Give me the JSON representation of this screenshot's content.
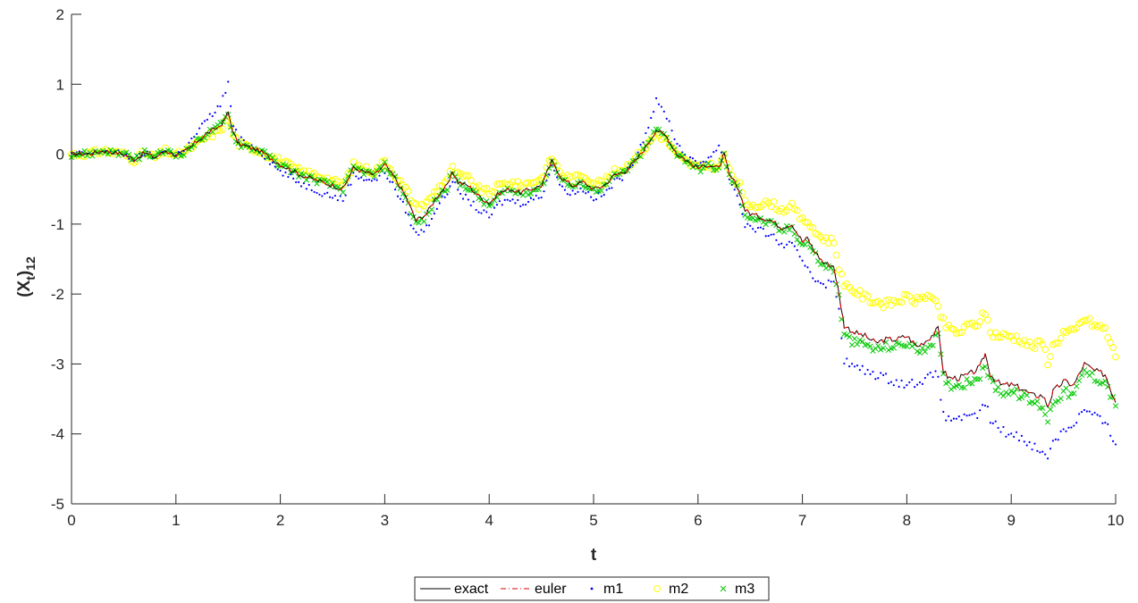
{
  "chart_data": {
    "type": "line",
    "title": "",
    "xlabel": "t",
    "ylabel": "(X_t)_12",
    "ylabel_main": "(X",
    "ylabel_sub1": "t",
    "ylabel_mid": ")",
    "ylabel_sub2": "12",
    "xlim": [
      0,
      10
    ],
    "ylim": [
      -5,
      2
    ],
    "xticks": [
      0,
      1,
      2,
      3,
      4,
      5,
      6,
      7,
      8,
      9,
      10
    ],
    "yticks": [
      2,
      1,
      0,
      -1,
      -2,
      -3,
      -4,
      -5
    ],
    "xtick_labels": [
      "0",
      "1",
      "2",
      "3",
      "4",
      "5",
      "6",
      "7",
      "8",
      "9",
      "10"
    ],
    "ytick_labels": [
      "2",
      "1",
      "0",
      "-1",
      "-2",
      "-3",
      "-4",
      "-5"
    ],
    "grid": false,
    "legend_placement": "bottom-center",
    "x": [
      0,
      0.2,
      0.3,
      0.5,
      0.6,
      0.7,
      0.8,
      0.9,
      1.0,
      1.1,
      1.2,
      1.3,
      1.4,
      1.45,
      1.5,
      1.55,
      1.6,
      1.8,
      2.0,
      2.2,
      2.4,
      2.6,
      2.7,
      2.9,
      3.0,
      3.1,
      3.2,
      3.3,
      3.4,
      3.5,
      3.6,
      3.65,
      3.7,
      3.8,
      3.9,
      4.0,
      4.1,
      4.2,
      4.3,
      4.5,
      4.6,
      4.7,
      4.8,
      4.9,
      5.0,
      5.1,
      5.2,
      5.3,
      5.4,
      5.5,
      5.6,
      5.7,
      5.8,
      5.9,
      6.0,
      6.1,
      6.2,
      6.25,
      6.3,
      6.35,
      6.4,
      6.45,
      6.5,
      6.6,
      6.7,
      6.8,
      6.9,
      7.0,
      7.05,
      7.1,
      7.2,
      7.3,
      7.35,
      7.4,
      7.5,
      7.6,
      7.7,
      7.8,
      7.9,
      8.0,
      8.1,
      8.2,
      8.3,
      8.35,
      8.4,
      8.5,
      8.6,
      8.7,
      8.75,
      8.8,
      8.9,
      9.0,
      9.1,
      9.2,
      9.3,
      9.35,
      9.4,
      9.5,
      9.6,
      9.7,
      9.8,
      9.9,
      10.0
    ],
    "series": [
      {
        "name": "exact",
        "color": "#000000",
        "style": "solid",
        "values": [
          0,
          0.01,
          0.05,
          0.0,
          -0.08,
          0.02,
          -0.05,
          0.05,
          -0.02,
          0.05,
          0.18,
          0.3,
          0.38,
          0.45,
          0.6,
          0.3,
          0.15,
          0.05,
          -0.15,
          -0.3,
          -0.4,
          -0.5,
          -0.2,
          -0.3,
          -0.15,
          -0.35,
          -0.6,
          -0.95,
          -0.85,
          -0.6,
          -0.45,
          -0.25,
          -0.4,
          -0.45,
          -0.6,
          -0.7,
          -0.55,
          -0.5,
          -0.55,
          -0.45,
          -0.1,
          -0.35,
          -0.45,
          -0.4,
          -0.5,
          -0.45,
          -0.3,
          -0.25,
          -0.1,
          0.1,
          0.35,
          0.25,
          0.0,
          -0.1,
          -0.2,
          -0.15,
          -0.2,
          0.0,
          -0.3,
          -0.4,
          -0.55,
          -0.8,
          -0.85,
          -0.9,
          -0.95,
          -1.05,
          -1.0,
          -1.25,
          -1.2,
          -1.35,
          -1.55,
          -1.6,
          -2.0,
          -2.45,
          -2.55,
          -2.6,
          -2.7,
          -2.65,
          -2.65,
          -2.6,
          -2.75,
          -2.65,
          -2.5,
          -3.1,
          -3.2,
          -3.2,
          -3.15,
          -3.05,
          -2.85,
          -3.15,
          -3.3,
          -3.3,
          -3.35,
          -3.45,
          -3.45,
          -3.6,
          -3.4,
          -3.25,
          -3.3,
          -3.0,
          -3.1,
          -3.15,
          -3.55
        ]
      },
      {
        "name": "euler",
        "color": "#e60000",
        "style": "dashdot",
        "values": [
          0,
          0.01,
          0.05,
          0.0,
          -0.08,
          0.02,
          -0.05,
          0.05,
          -0.02,
          0.05,
          0.18,
          0.3,
          0.38,
          0.45,
          0.6,
          0.3,
          0.15,
          0.05,
          -0.15,
          -0.3,
          -0.4,
          -0.5,
          -0.2,
          -0.3,
          -0.15,
          -0.35,
          -0.6,
          -0.95,
          -0.85,
          -0.6,
          -0.45,
          -0.25,
          -0.4,
          -0.45,
          -0.6,
          -0.7,
          -0.55,
          -0.5,
          -0.55,
          -0.45,
          -0.1,
          -0.35,
          -0.45,
          -0.4,
          -0.5,
          -0.45,
          -0.3,
          -0.25,
          -0.1,
          0.1,
          0.35,
          0.25,
          0.0,
          -0.1,
          -0.2,
          -0.15,
          -0.2,
          0.0,
          -0.3,
          -0.4,
          -0.55,
          -0.8,
          -0.85,
          -0.9,
          -0.95,
          -1.05,
          -1.0,
          -1.25,
          -1.2,
          -1.35,
          -1.55,
          -1.6,
          -2.0,
          -2.45,
          -2.55,
          -2.6,
          -2.7,
          -2.65,
          -2.65,
          -2.6,
          -2.75,
          -2.65,
          -2.5,
          -3.1,
          -3.2,
          -3.2,
          -3.15,
          -3.05,
          -2.85,
          -3.15,
          -3.3,
          -3.3,
          -3.35,
          -3.45,
          -3.45,
          -3.6,
          -3.4,
          -3.25,
          -3.3,
          -3.0,
          -3.1,
          -3.15,
          -3.55
        ]
      },
      {
        "name": "m1",
        "color": "#0000ff",
        "marker": "dot",
        "values": [
          0,
          0.01,
          0.05,
          0.0,
          -0.08,
          0.02,
          -0.05,
          0.08,
          -0.02,
          0.1,
          0.3,
          0.5,
          0.65,
          0.8,
          1.0,
          0.4,
          0.22,
          0.05,
          -0.25,
          -0.42,
          -0.55,
          -0.65,
          -0.3,
          -0.38,
          -0.25,
          -0.5,
          -0.8,
          -1.15,
          -1.05,
          -0.75,
          -0.55,
          -0.35,
          -0.55,
          -0.65,
          -0.8,
          -0.9,
          -0.7,
          -0.65,
          -0.7,
          -0.6,
          -0.15,
          -0.5,
          -0.55,
          -0.5,
          -0.62,
          -0.58,
          -0.4,
          -0.3,
          -0.05,
          0.3,
          0.75,
          0.55,
          0.15,
          -0.05,
          -0.15,
          -0.05,
          0.1,
          0.0,
          -0.35,
          -0.5,
          -0.7,
          -1.0,
          -1.05,
          -1.1,
          -1.15,
          -1.3,
          -1.3,
          -1.55,
          -1.6,
          -1.75,
          -1.85,
          -1.85,
          -2.2,
          -2.95,
          -3.05,
          -3.1,
          -3.15,
          -3.2,
          -3.25,
          -3.3,
          -3.25,
          -3.2,
          -3.15,
          -3.75,
          -3.8,
          -3.75,
          -3.8,
          -3.7,
          -3.55,
          -3.8,
          -3.95,
          -4.0,
          -4.05,
          -4.15,
          -4.3,
          -4.3,
          -4.1,
          -3.95,
          -3.85,
          -3.65,
          -3.75,
          -3.85,
          -4.15
        ]
      },
      {
        "name": "m2",
        "color": "#ffff00",
        "marker": "circle",
        "values": [
          0,
          0.01,
          0.05,
          0.0,
          -0.08,
          0.02,
          -0.05,
          0.05,
          -0.02,
          0.05,
          0.15,
          0.25,
          0.32,
          0.4,
          0.5,
          0.28,
          0.15,
          0.05,
          -0.1,
          -0.25,
          -0.32,
          -0.45,
          -0.15,
          -0.25,
          -0.1,
          -0.3,
          -0.5,
          -0.75,
          -0.7,
          -0.5,
          -0.35,
          -0.2,
          -0.3,
          -0.35,
          -0.5,
          -0.55,
          -0.45,
          -0.4,
          -0.45,
          -0.35,
          -0.05,
          -0.3,
          -0.35,
          -0.3,
          -0.4,
          -0.4,
          -0.25,
          -0.2,
          -0.05,
          0.1,
          0.3,
          0.2,
          -0.02,
          -0.12,
          -0.2,
          -0.15,
          -0.2,
          0.0,
          -0.25,
          -0.35,
          -0.45,
          -0.7,
          -0.72,
          -0.72,
          -0.7,
          -0.8,
          -0.75,
          -0.95,
          -0.95,
          -1.1,
          -1.2,
          -1.25,
          -1.6,
          -1.9,
          -1.95,
          -2.05,
          -2.1,
          -2.15,
          -2.1,
          -2.05,
          -2.1,
          -2.0,
          -2.2,
          -2.4,
          -2.5,
          -2.55,
          -2.45,
          -2.4,
          -2.25,
          -2.55,
          -2.6,
          -2.6,
          -2.65,
          -2.75,
          -2.7,
          -2.95,
          -2.75,
          -2.55,
          -2.55,
          -2.35,
          -2.45,
          -2.5,
          -2.9
        ]
      },
      {
        "name": "m3",
        "color": "#00c800",
        "marker": "x",
        "values": [
          0,
          0.01,
          0.05,
          0.0,
          -0.08,
          0.02,
          -0.05,
          0.05,
          -0.02,
          0.05,
          0.18,
          0.3,
          0.38,
          0.45,
          0.58,
          0.28,
          0.15,
          0.05,
          -0.15,
          -0.3,
          -0.4,
          -0.5,
          -0.2,
          -0.3,
          -0.15,
          -0.35,
          -0.62,
          -1.0,
          -0.9,
          -0.62,
          -0.47,
          -0.25,
          -0.42,
          -0.47,
          -0.62,
          -0.75,
          -0.58,
          -0.52,
          -0.57,
          -0.47,
          -0.1,
          -0.37,
          -0.47,
          -0.42,
          -0.52,
          -0.47,
          -0.32,
          -0.25,
          -0.1,
          0.1,
          0.35,
          0.25,
          0.0,
          -0.1,
          -0.22,
          -0.17,
          -0.22,
          0.0,
          -0.32,
          -0.42,
          -0.55,
          -0.85,
          -0.9,
          -0.95,
          -1.0,
          -1.1,
          -1.05,
          -1.3,
          -1.25,
          -1.4,
          -1.6,
          -1.65,
          -2.05,
          -2.6,
          -2.7,
          -2.72,
          -2.8,
          -2.75,
          -2.75,
          -2.7,
          -2.8,
          -2.75,
          -2.6,
          -3.2,
          -3.3,
          -3.3,
          -3.25,
          -3.15,
          -3.0,
          -3.25,
          -3.4,
          -3.4,
          -3.45,
          -3.55,
          -3.6,
          -3.8,
          -3.55,
          -3.4,
          -3.45,
          -3.1,
          -3.2,
          -3.25,
          -3.6
        ]
      }
    ]
  }
}
